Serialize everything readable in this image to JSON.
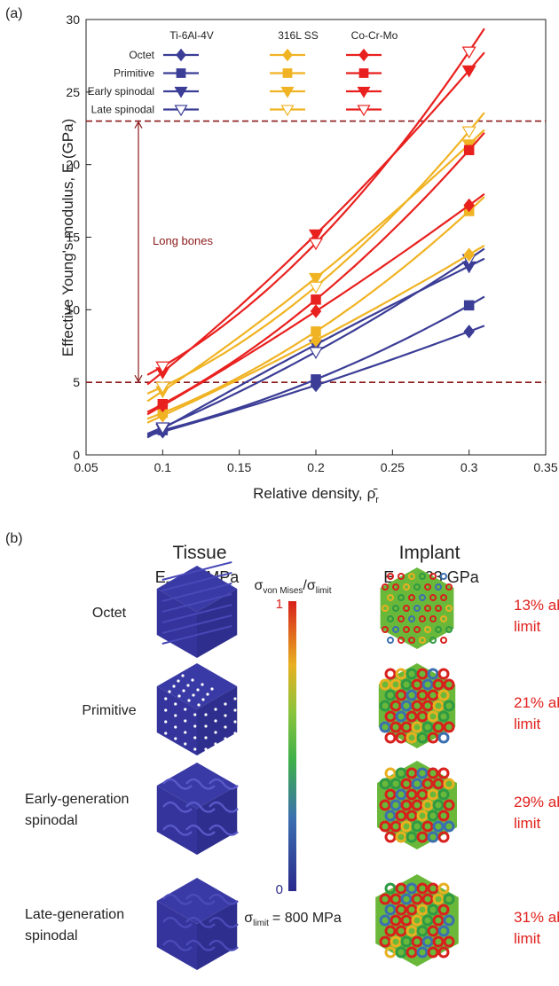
{
  "chart_data": {
    "type": "line",
    "panel_label": "(a)",
    "y_label": "Effective Young's modulus, E (GPa)",
    "x_label": "Relative density,",
    "x_label_symbol": "ρ̄",
    "x_label_sub": "r",
    "xlim": [
      0.05,
      0.35
    ],
    "xticks": [
      0.05,
      0.1,
      0.15,
      0.2,
      0.25,
      0.3,
      0.35
    ],
    "ylim": [
      0,
      30
    ],
    "yticks": [
      0,
      5,
      10,
      15,
      20,
      25,
      30
    ],
    "grid": false,
    "x": [
      0.1,
      0.2,
      0.3
    ],
    "materials": [
      {
        "name": "Ti-6Al-4V",
        "color": "#3b3d96"
      },
      {
        "name": "316L SS",
        "color": "#f0b323"
      },
      {
        "name": "Co-Cr-Mo",
        "color": "#e8211f"
      }
    ],
    "topologies": [
      {
        "name": "Octet",
        "marker": "diamond"
      },
      {
        "name": "Primitive",
        "marker": "square"
      },
      {
        "name": "Early spinodal",
        "marker": "triangle"
      },
      {
        "name": "Late spinodal",
        "marker": "open-triangle"
      }
    ],
    "series": [
      {
        "material": "Ti-6Al-4V",
        "topology": "Octet",
        "values": [
          1.6,
          4.8,
          8.5
        ]
      },
      {
        "material": "Ti-6Al-4V",
        "topology": "Primitive",
        "values": [
          1.7,
          5.2,
          10.3
        ]
      },
      {
        "material": "Ti-6Al-4V",
        "topology": "Early spinodal",
        "values": [
          1.8,
          7.6,
          13.0
        ]
      },
      {
        "material": "Ti-6Al-4V",
        "topology": "Late spinodal",
        "values": [
          1.9,
          7.1,
          13.5
        ]
      },
      {
        "material": "316L SS",
        "topology": "Octet",
        "values": [
          2.7,
          7.9,
          13.8
        ]
      },
      {
        "material": "316L SS",
        "topology": "Primitive",
        "values": [
          2.9,
          8.5,
          16.8
        ]
      },
      {
        "material": "316L SS",
        "topology": "Early spinodal",
        "values": [
          4.4,
          12.2,
          21.4
        ]
      },
      {
        "material": "316L SS",
        "topology": "Late spinodal",
        "values": [
          4.7,
          11.6,
          22.3
        ]
      },
      {
        "material": "Co-Cr-Mo",
        "topology": "Octet",
        "values": [
          3.4,
          9.9,
          17.2
        ]
      },
      {
        "material": "Co-Cr-Mo",
        "topology": "Primitive",
        "values": [
          3.5,
          10.7,
          21.0
        ]
      },
      {
        "material": "Co-Cr-Mo",
        "topology": "Early spinodal",
        "values": [
          5.7,
          15.2,
          26.5
        ]
      },
      {
        "material": "Co-Cr-Mo",
        "topology": "Late spinodal",
        "values": [
          6.1,
          14.6,
          27.8
        ]
      }
    ],
    "reference_lines": [
      5,
      23
    ],
    "reference_color": "#8b1a1a",
    "annotation": "Long bones"
  },
  "panel_b": {
    "label": "(b)",
    "tissue": {
      "title": "Tissue",
      "symbol": "E",
      "sub": "m",
      "rest": "= 1 MPa"
    },
    "implant": {
      "title": "Implant",
      "symbol": "E",
      "sub": "r",
      "rest": "= 123 GPa"
    },
    "rows": [
      {
        "name": [
          "Octet"
        ],
        "excess": [
          "13% above",
          "limit"
        ]
      },
      {
        "name": [
          "Primitive"
        ],
        "excess": [
          "21% above",
          "limit"
        ]
      },
      {
        "name": [
          "Early-generation",
          "spinodal"
        ],
        "excess": [
          "29% above",
          "limit"
        ]
      },
      {
        "name": [
          "Late-generation",
          "spinodal"
        ],
        "excess": [
          "31% above",
          "limit"
        ]
      }
    ],
    "colorbar": {
      "numerator": "σ",
      "numerator_sub": "von Mises",
      "slash": "/",
      "denominator": "σ",
      "denominator_sub": "limit",
      "max": "1",
      "min": "0"
    },
    "limit": {
      "symbol": "σ",
      "sub": "limit",
      "rest": "= 800 MPa"
    }
  }
}
